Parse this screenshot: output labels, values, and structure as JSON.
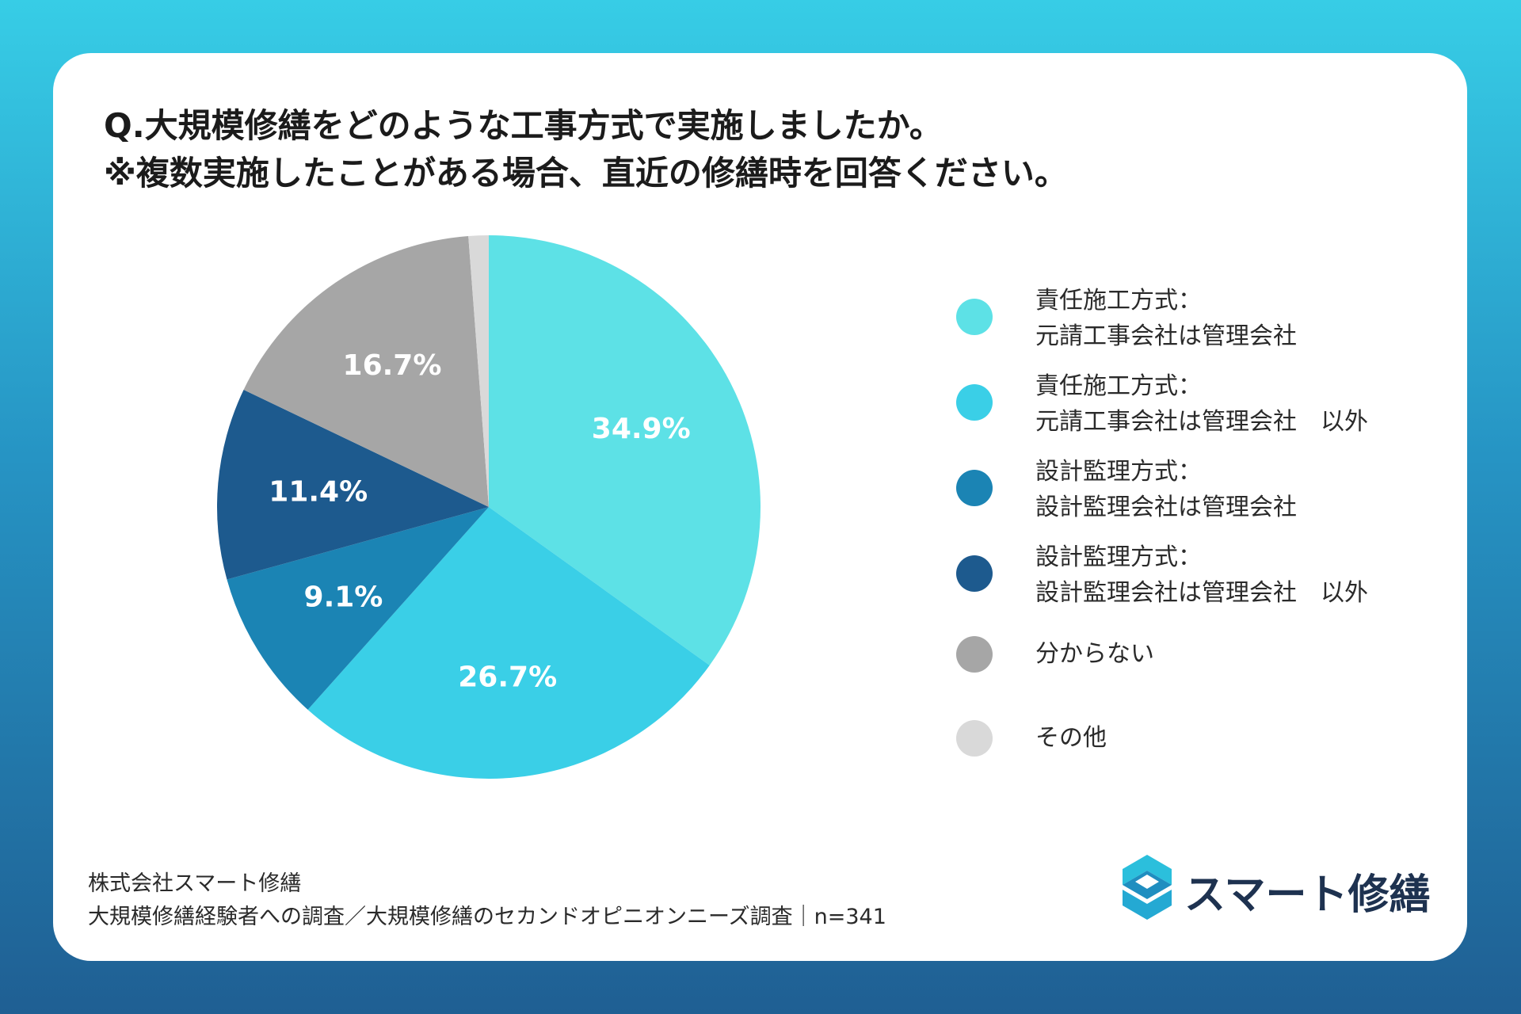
{
  "title": {
    "line1": "Q.大規模修繕をどのような工事方式で実施しましたか。",
    "line2": "※複数実施したことがある場合、直近の修繕時を回答ください。"
  },
  "chart_data": {
    "type": "pie",
    "title": "Q.大規模修繕をどのような工事方式で実施しましたか。 ※複数実施したことがある場合、直近の修繕時を回答ください。",
    "slices": [
      {
        "name": "責任施工方式：元請工事会社は管理会社",
        "value": 34.9,
        "label": "34.9%",
        "color": "#5de1e6"
      },
      {
        "name": "責任施工方式：元請工事会社は管理会社　以外",
        "value": 26.7,
        "label": "26.7%",
        "color": "#3acfe7"
      },
      {
        "name": "設計監理方式：設計監理会社は管理会社",
        "value": 9.1,
        "label": "9.1%",
        "color": "#1b84b4"
      },
      {
        "name": "設計監理方式：設計監理会社は管理会社　以外",
        "value": 11.4,
        "label": "11.4%",
        "color": "#1d5a8e"
      },
      {
        "name": "分からない",
        "value": 16.7,
        "label": "16.7%",
        "color": "#a6a6a6"
      },
      {
        "name": "その他",
        "value": 1.2,
        "label": "",
        "color": "#d9d9d9"
      }
    ],
    "start_angle": "12 o'clock",
    "direction": "clockwise",
    "legend_position": "right"
  },
  "legend": [
    {
      "line1": "責任施工方式：",
      "line2": "元請工事会社は管理会社",
      "color": "#5de1e6"
    },
    {
      "line1": "責任施工方式：",
      "line2": "元請工事会社は管理会社　以外",
      "color": "#3acfe7"
    },
    {
      "line1": "設計監理方式：",
      "line2": "設計監理会社は管理会社",
      "color": "#1b84b4"
    },
    {
      "line1": "設計監理方式：",
      "line2": "設計監理会社は管理会社　以外",
      "color": "#1d5a8e"
    },
    {
      "line1": "分からない",
      "line2": "",
      "color": "#a6a6a6"
    },
    {
      "line1": "その他",
      "line2": "",
      "color": "#d9d9d9"
    }
  ],
  "footer": {
    "line1": "株式会社スマート修繕",
    "line2": "大規模修繕経験者への調査／大規模修繕のセカンドオピニオンニーズ調査｜n=341"
  },
  "brand": {
    "name": "スマート修繕",
    "icon": "brand-logo-icon"
  }
}
